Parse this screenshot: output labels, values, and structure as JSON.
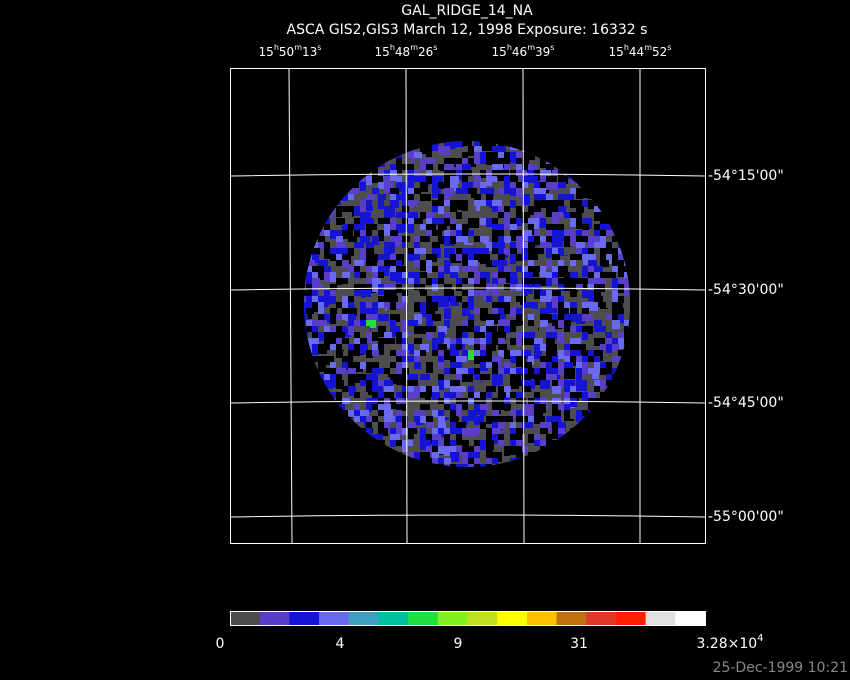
{
  "header": {
    "title": "GAL_RIDGE_14_NA",
    "subtitle": "ASCA GIS2,GIS3 March 12, 1998 Exposure: 16332 s"
  },
  "ra_labels": [
    [
      "15",
      "h",
      "50",
      "m",
      "13",
      "s"
    ],
    [
      "15",
      "h",
      "48",
      "m",
      "26",
      "s"
    ],
    [
      "15",
      "h",
      "46",
      "m",
      "39",
      "s"
    ],
    [
      "15",
      "h",
      "44",
      "m",
      "52",
      "s"
    ]
  ],
  "dec_labels": [
    "-54°15'00\"",
    "-54°30'00\"",
    "-54°45'00\"",
    "-55°00'00\""
  ],
  "colorbar": {
    "colors": [
      "#4d4d4d",
      "#5a3ec8",
      "#1414d2",
      "#6a6af0",
      "#3fa0c0",
      "#00c0a0",
      "#20e040",
      "#80f020",
      "#c0e020",
      "#ffff00",
      "#ffc000",
      "#c07010",
      "#e03828",
      "#ff2000",
      "#e0e0e0",
      "#ffffff"
    ],
    "labels": [
      "0",
      "4",
      "9",
      "31"
    ],
    "max_label": [
      "3.28×10",
      "4"
    ]
  },
  "footer": {
    "timestamp": "25-Dec-1999 10:21"
  }
}
